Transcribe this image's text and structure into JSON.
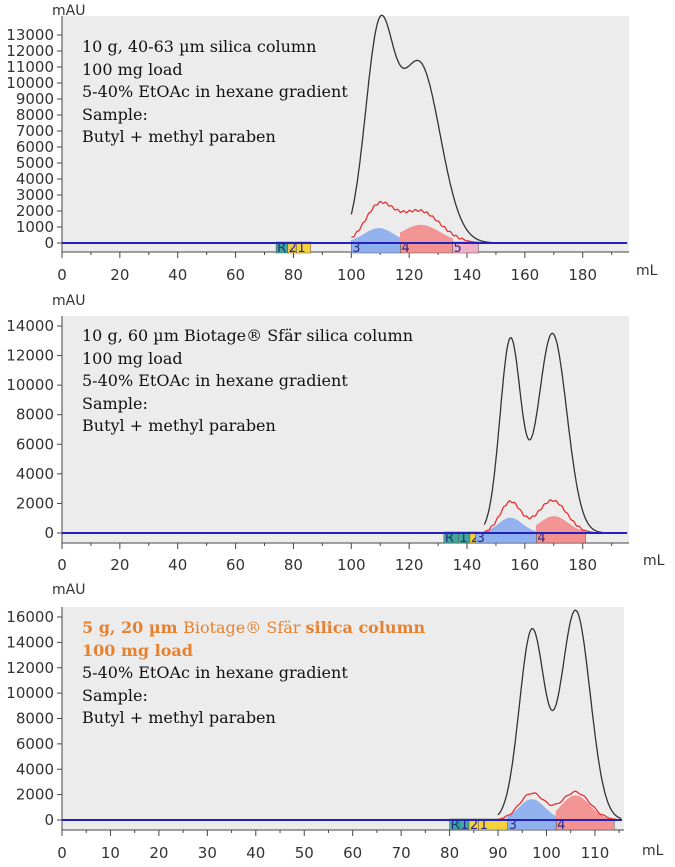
{
  "chart_data": [
    {
      "type": "line",
      "ylabel": "mAU",
      "xlabel": "mL",
      "ylim": [
        0,
        13000
      ],
      "xlim": [
        0,
        196
      ],
      "y_ticks": [
        0,
        1000,
        2000,
        3000,
        4000,
        5000,
        6000,
        7000,
        8000,
        9000,
        10000,
        11000,
        12000,
        13000
      ],
      "x_ticks": [
        0,
        20,
        40,
        60,
        80,
        100,
        120,
        140,
        160,
        180
      ],
      "annotation": [
        "10 g, 40-63 µm silica column",
        "100 mg load",
        "5-40% EtOAc in hexane gradient",
        "Sample:",
        "Butyl + methyl paraben"
      ],
      "series": [
        {
          "color": "#333333",
          "peaks": [
            {
              "x": 109.5,
              "y": 12300,
              "w": 4.8
            },
            {
              "x": 123.5,
              "y": 11200,
              "w": 7.2
            }
          ],
          "start": 100
        },
        {
          "color": "#e83030",
          "peaks": [
            {
              "x": 109.5,
              "y": 2200,
              "w": 4.8
            },
            {
              "x": 123.5,
              "y": 2000,
              "w": 7.2
            }
          ],
          "start": 100
        },
        {
          "color": "#2222bb",
          "baseline": 0
        }
      ],
      "fractions": [
        {
          "label": "R",
          "x0": 74,
          "x1": 78,
          "color": "#3fa89a"
        },
        {
          "label": "2",
          "x0": 78,
          "x1": 81,
          "color": "#e8c84a"
        },
        {
          "label": "1",
          "x0": 81,
          "x1": 86,
          "color": "#f5d23c"
        },
        {
          "label": "3",
          "x0": 100,
          "x1": 117,
          "color": "#8fb0ee",
          "peak": {
            "x": 109.5,
            "y": 900,
            "w": 5.0
          }
        },
        {
          "label": "4",
          "x0": 117,
          "x1": 135,
          "color": "#f39090",
          "peak": {
            "x": 124,
            "y": 1100,
            "w": 6.5
          }
        },
        {
          "label": "5",
          "x0": 135,
          "x1": 144,
          "color": "#f0b0c8"
        }
      ]
    },
    {
      "type": "line",
      "ylabel": "mAU",
      "xlabel": "mL",
      "ylim": [
        0,
        14000
      ],
      "xlim": [
        0,
        196
      ],
      "y_ticks": [
        0,
        2000,
        4000,
        6000,
        8000,
        10000,
        12000,
        14000
      ],
      "x_ticks": [
        0,
        20,
        40,
        60,
        80,
        100,
        120,
        140,
        160,
        180
      ],
      "annotation": [
        "10 g, 60 µm Biotage® Sfär silica column",
        "100 mg load",
        "5-40% EtOAc in hexane gradient",
        "Sample:",
        "Butyl + methyl paraben"
      ],
      "series": [
        {
          "color": "#333333",
          "peaks": [
            {
              "x": 155,
              "y": 13000,
              "w": 3.6
            },
            {
              "x": 169.5,
              "y": 13500,
              "w": 5.0
            }
          ],
          "start": 146
        },
        {
          "color": "#e83030",
          "peaks": [
            {
              "x": 155,
              "y": 2100,
              "w": 3.6
            },
            {
              "x": 169.5,
              "y": 2200,
              "w": 5.0
            }
          ],
          "start": 146
        },
        {
          "color": "#2222bb",
          "baseline": 0
        }
      ],
      "fractions": [
        {
          "label": "R",
          "x0": 132,
          "x1": 137,
          "color": "#3fa89a"
        },
        {
          "label": "1",
          "x0": 137,
          "x1": 141,
          "color": "#3fa89a"
        },
        {
          "label": "2",
          "x0": 141,
          "x1": 143,
          "color": "#f5d23c"
        },
        {
          "label": "3",
          "x0": 143,
          "x1": 164,
          "color": "#8fb0ee",
          "peak": {
            "x": 155,
            "y": 1000,
            "w": 4.0
          }
        },
        {
          "label": "4",
          "x0": 164,
          "x1": 181,
          "color": "#f39090",
          "peak": {
            "x": 170,
            "y": 1100,
            "w": 4.8
          }
        }
      ]
    },
    {
      "type": "line",
      "ylabel": "mAU",
      "xlabel": "mL",
      "ylim": [
        0,
        17000
      ],
      "xlim": [
        0,
        116
      ],
      "y_ticks": [
        0,
        2000,
        4000,
        6000,
        8000,
        10000,
        12000,
        14000,
        16000
      ],
      "x_ticks": [
        0,
        10,
        20,
        30,
        40,
        50,
        60,
        70,
        80,
        90,
        100,
        110
      ],
      "annotation_rich": [
        [
          {
            "t": "5 g, 20 µm ",
            "s": "hl"
          },
          {
            "t": "Biotage® Sfär ",
            "s": "hl-plain"
          },
          {
            "t": "silica column",
            "s": "hl"
          }
        ],
        [
          {
            "t": "100 mg load",
            "s": "hl"
          }
        ],
        [
          {
            "t": "5-40% EtOAc in hexane gradient",
            "s": ""
          }
        ],
        [
          {
            "t": "Sample:",
            "s": ""
          }
        ],
        [
          {
            "t": "Butyl + methyl paraben",
            "s": ""
          }
        ]
      ],
      "series": [
        {
          "color": "#333333",
          "peaks": [
            {
              "x": 97,
              "y": 14900,
              "w": 2.6
            },
            {
              "x": 106,
              "y": 16500,
              "w": 3.0
            }
          ],
          "start": 90
        },
        {
          "color": "#e83030",
          "peaks": [
            {
              "x": 97,
              "y": 2100,
              "w": 2.6
            },
            {
              "x": 106,
              "y": 2200,
              "w": 3.0
            }
          ],
          "start": 90
        },
        {
          "color": "#2222bb",
          "baseline": 0
        }
      ],
      "fractions": [
        {
          "label": "R",
          "x0": 80,
          "x1": 82,
          "color": "#3fa89a"
        },
        {
          "label": "1",
          "x0": 82,
          "x1": 84,
          "color": "#3fa89a"
        },
        {
          "label": "2",
          "x0": 84,
          "x1": 86,
          "color": "#f5d23c"
        },
        {
          "label": "1",
          "x0": 86,
          "x1": 92,
          "color": "#f5d23c"
        },
        {
          "label": "3",
          "x0": 92,
          "x1": 102,
          "color": "#8fb0ee",
          "peak": {
            "x": 97,
            "y": 1600,
            "w": 2.6
          }
        },
        {
          "label": "4",
          "x0": 102,
          "x1": 114,
          "color": "#f39090",
          "peak": {
            "x": 106,
            "y": 1900,
            "w": 2.8
          }
        }
      ]
    }
  ]
}
